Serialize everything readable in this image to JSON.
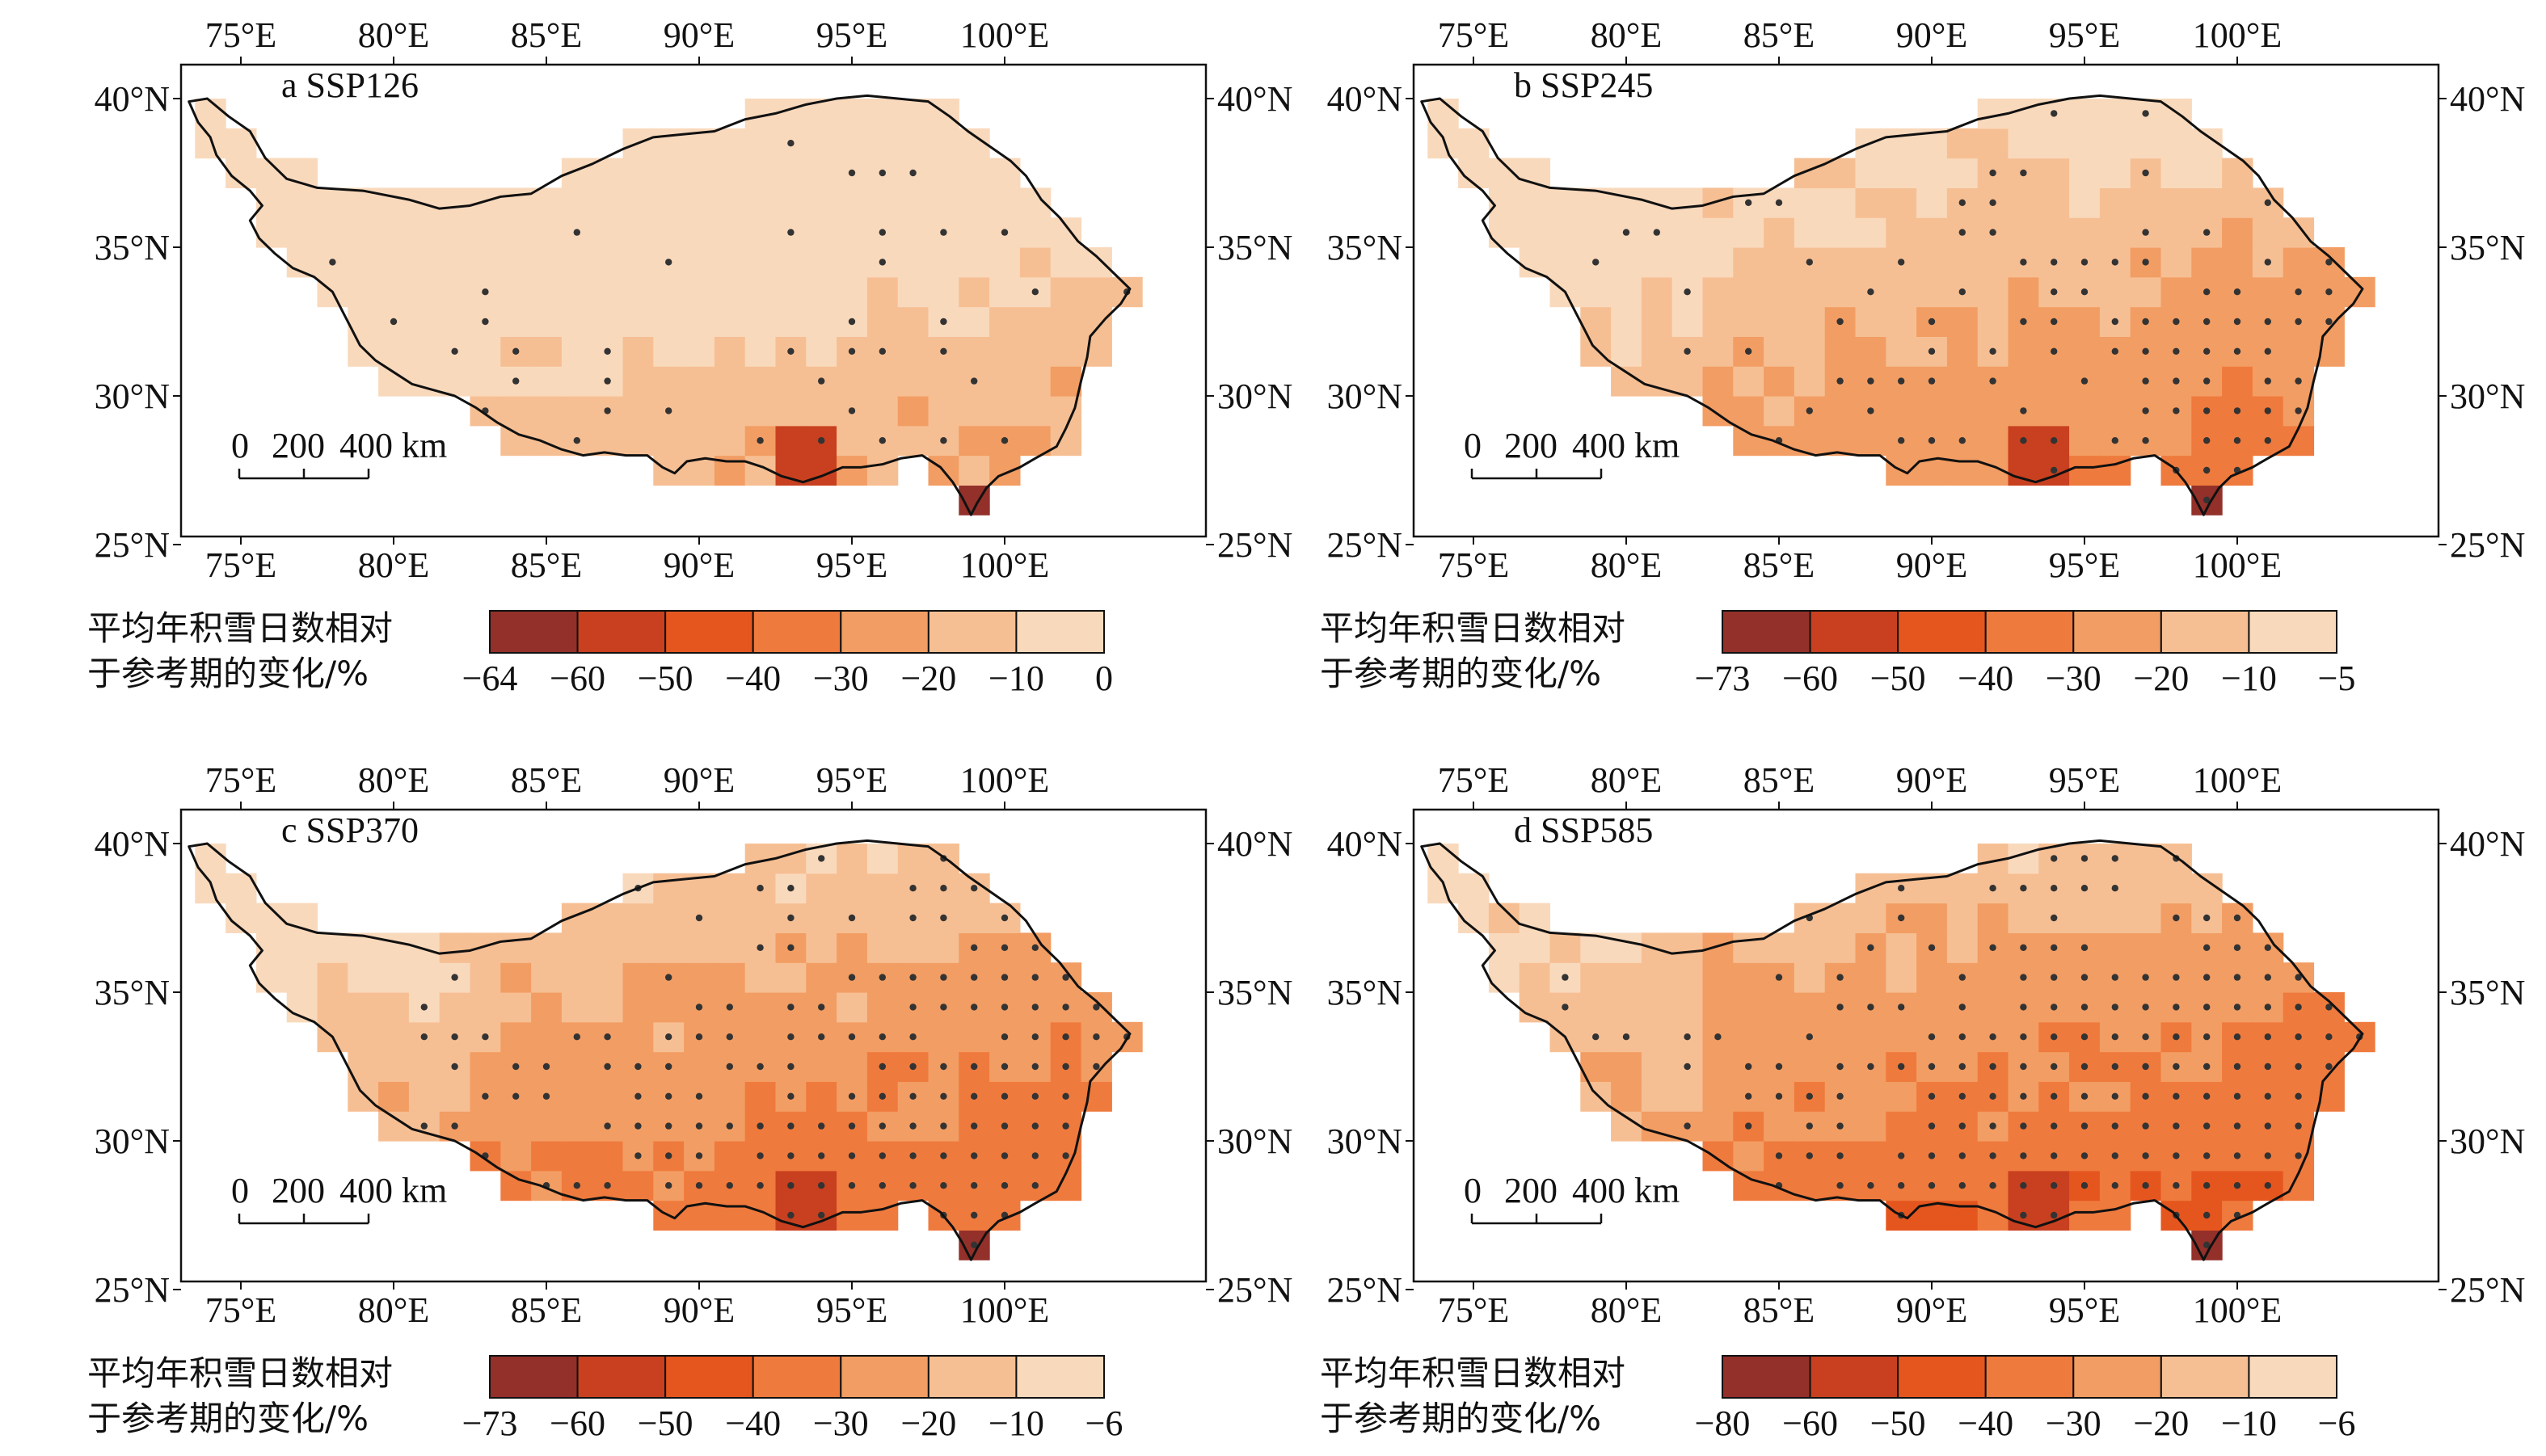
{
  "figure": {
    "legend_title_line1": "平均年积雪日数相对",
    "legend_title_line2": "于参考期的变化/%",
    "lon_ticks": [
      "75°E",
      "80°E",
      "85°E",
      "90°E",
      "95°E",
      "100°E"
    ],
    "lat_ticks": [
      "40°N",
      "35°N",
      "30°N",
      "25°N"
    ],
    "scale_bar": {
      "labels": [
        "0",
        "200",
        "400 km"
      ]
    },
    "stipple_color": "#333333",
    "outline_color": "#111111"
  },
  "panels": [
    {
      "id": "a",
      "title": "a SSP126",
      "legend_ticks": [
        "−64",
        "−60",
        "−50",
        "−40",
        "−30",
        "−20",
        "−10",
        "0"
      ],
      "legend_colors": [
        "#93302a",
        "#c8401f",
        "#e5561f",
        "#ef7a3d",
        "#f29d63",
        "#f6bf93",
        "#f9d9bc"
      ]
    },
    {
      "id": "b",
      "title": "b SSP245",
      "legend_ticks": [
        "−73",
        "−60",
        "−50",
        "−40",
        "−30",
        "−20",
        "−10",
        "−5"
      ],
      "legend_colors": [
        "#93302a",
        "#c8401f",
        "#e5561f",
        "#ef7a3d",
        "#f29d63",
        "#f6bf93",
        "#f9d9bc"
      ]
    },
    {
      "id": "c",
      "title": "c SSP370",
      "legend_ticks": [
        "−73",
        "−60",
        "−50",
        "−40",
        "−30",
        "−20",
        "−10",
        "−6"
      ],
      "legend_colors": [
        "#93302a",
        "#c8401f",
        "#e5561f",
        "#ef7a3d",
        "#f29d63",
        "#f6bf93",
        "#f9d9bc"
      ]
    },
    {
      "id": "d",
      "title": "d SSP585",
      "legend_ticks": [
        "−80",
        "−60",
        "−50",
        "−40",
        "−30",
        "−20",
        "−10",
        "−6"
      ],
      "legend_colors": [
        "#93302a",
        "#c8401f",
        "#e5561f",
        "#ef7a3d",
        "#f29d63",
        "#f6bf93",
        "#f9d9bc"
      ]
    }
  ]
}
